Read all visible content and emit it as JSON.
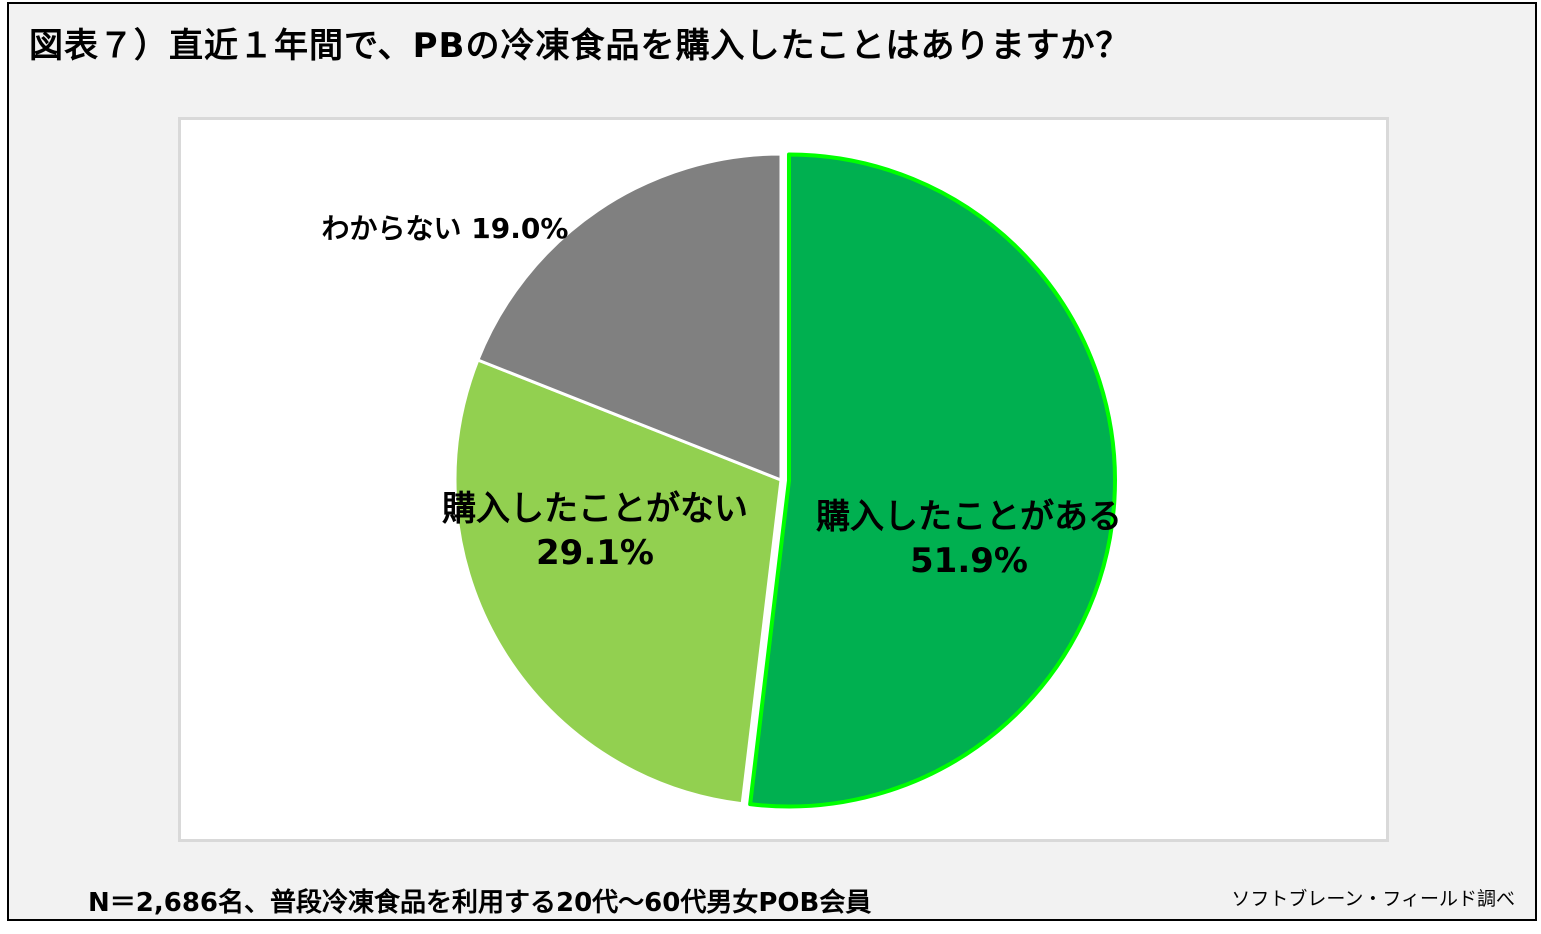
{
  "title": "図表７）直近１年間で、PBの冷凍食品を購入したことはありますか？",
  "footnote": "N＝2,686名、普段冷凍食品を利用する20代～60代男女POB会員",
  "source": "ソフトブレーン・フィールド調べ",
  "chart_data": {
    "type": "pie",
    "start_angle": "12 o'clock, clockwise",
    "slices": [
      {
        "label": "購入したことがある",
        "value": 51.9,
        "value_label": "51.9%",
        "color": "#00b050",
        "edge": "#00ff00",
        "exploded": true
      },
      {
        "label": "購入したことがない",
        "value": 29.1,
        "value_label": "29.1%",
        "color": "#92d050"
      },
      {
        "label": "わからない",
        "value": 19.0,
        "value_label": "19.0%",
        "color": "#808080"
      }
    ]
  },
  "colors": {
    "background": "#f2f2f2",
    "plot_area": "#ffffff",
    "plot_border": "#d9d9d9"
  }
}
